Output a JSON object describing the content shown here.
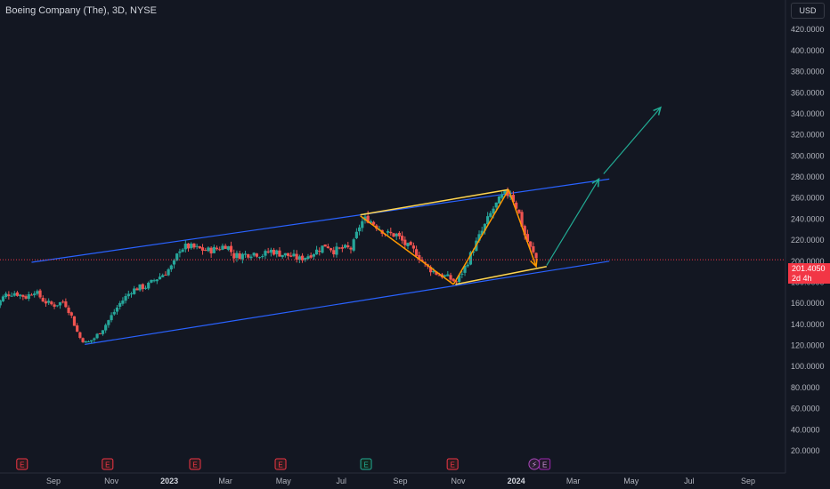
{
  "header": {
    "title": "Boeing Company (The), 3D, NYSE",
    "currency": "USD"
  },
  "price_label": {
    "price": "201.4050",
    "countdown": "2d 4h"
  },
  "colors": {
    "up": "#26a69a",
    "down": "#ef5350",
    "channel": "#2962ff",
    "pattern": "#ff9800",
    "pattern_line": "#ffd54f",
    "projection": "#22ab94",
    "price_line": "#f23645",
    "background": "#131722"
  },
  "chart_data": {
    "type": "candlestick",
    "ylim": [
      20,
      440
    ],
    "yticks": [
      20,
      40,
      60,
      80,
      100,
      120,
      140,
      160,
      180,
      200,
      220,
      240,
      260,
      280,
      300,
      320,
      340,
      360,
      380,
      400,
      420
    ],
    "ytick_labels": [
      "20.0000",
      "40.0000",
      "60.0000",
      "80.0000",
      "100.0000",
      "120.0000",
      "140.0000",
      "160.0000",
      "180.0000",
      "200.0000",
      "220.0000",
      "240.0000",
      "260.0000",
      "280.0000",
      "300.0000",
      "320.0000",
      "340.0000",
      "360.0000",
      "380.0000",
      "400.0000",
      "420.0000"
    ],
    "xticks": [
      {
        "label": "Sep",
        "date": "2022-09-01",
        "year": false
      },
      {
        "label": "Nov",
        "date": "2022-11-01",
        "year": false
      },
      {
        "label": "2023",
        "date": "2023-01-01",
        "year": true
      },
      {
        "label": "Mar",
        "date": "2023-03-01",
        "year": false
      },
      {
        "label": "May",
        "date": "2023-05-01",
        "year": false
      },
      {
        "label": "Jul",
        "date": "2023-07-01",
        "year": false
      },
      {
        "label": "Sep",
        "date": "2023-09-01",
        "year": false
      },
      {
        "label": "Nov",
        "date": "2023-11-01",
        "year": false
      },
      {
        "label": "2024",
        "date": "2024-01-01",
        "year": true
      },
      {
        "label": "Mar",
        "date": "2024-03-01",
        "year": false
      },
      {
        "label": "May",
        "date": "2024-05-01",
        "year": false
      },
      {
        "label": "Jul",
        "date": "2024-07-01",
        "year": false
      },
      {
        "label": "Sep",
        "date": "2024-09-01",
        "year": false
      }
    ],
    "price_close": 201.405,
    "path": [
      [
        "2022-07-01",
        155
      ],
      [
        "2022-07-12",
        168
      ],
      [
        "2022-07-22",
        170
      ],
      [
        "2022-08-03",
        166
      ],
      [
        "2022-08-12",
        172
      ],
      [
        "2022-08-22",
        162
      ],
      [
        "2022-09-01",
        158
      ],
      [
        "2022-09-12",
        162
      ],
      [
        "2022-09-19",
        150
      ],
      [
        "2022-09-28",
        128
      ],
      [
        "2022-10-06",
        122
      ],
      [
        "2022-10-14",
        127
      ],
      [
        "2022-10-24",
        137
      ],
      [
        "2022-11-01",
        148
      ],
      [
        "2022-11-10",
        160
      ],
      [
        "2022-11-22",
        172
      ],
      [
        "2022-11-30",
        175
      ],
      [
        "2022-12-08",
        176
      ],
      [
        "2022-12-16",
        182
      ],
      [
        "2022-12-26",
        188
      ],
      [
        "2023-01-05",
        196
      ],
      [
        "2023-01-12",
        212
      ],
      [
        "2023-01-20",
        214
      ],
      [
        "2023-01-30",
        212
      ],
      [
        "2023-02-10",
        210
      ],
      [
        "2023-02-22",
        212
      ],
      [
        "2023-03-02",
        216
      ],
      [
        "2023-03-10",
        205
      ],
      [
        "2023-03-20",
        206
      ],
      [
        "2023-03-30",
        208
      ],
      [
        "2023-04-10",
        206
      ],
      [
        "2023-04-18",
        210
      ],
      [
        "2023-04-28",
        207
      ],
      [
        "2023-05-08",
        205
      ],
      [
        "2023-05-18",
        202
      ],
      [
        "2023-05-26",
        205
      ],
      [
        "2023-06-05",
        210
      ],
      [
        "2023-06-15",
        216
      ],
      [
        "2023-06-23",
        210
      ],
      [
        "2023-07-03",
        212
      ],
      [
        "2023-07-12",
        212
      ],
      [
        "2023-07-21",
        236
      ],
      [
        "2023-07-28",
        241
      ],
      [
        "2023-08-08",
        233
      ],
      [
        "2023-08-18",
        226
      ],
      [
        "2023-08-28",
        225
      ],
      [
        "2023-09-07",
        215
      ],
      [
        "2023-09-18",
        208
      ],
      [
        "2023-09-28",
        195
      ],
      [
        "2023-10-10",
        188
      ],
      [
        "2023-10-20",
        185
      ],
      [
        "2023-10-30",
        180
      ],
      [
        "2023-11-09",
        196
      ],
      [
        "2023-11-17",
        212
      ],
      [
        "2023-11-28",
        232
      ],
      [
        "2023-12-08",
        250
      ],
      [
        "2023-12-18",
        262
      ],
      [
        "2023-12-26",
        265
      ],
      [
        "2024-01-03",
        248
      ],
      [
        "2024-01-10",
        225
      ],
      [
        "2024-01-17",
        210
      ],
      [
        "2024-01-23",
        201.4
      ]
    ],
    "channel": {
      "upper": [
        [
          "2022-08-09",
          199
        ],
        [
          "2024-04-08",
          278
        ]
      ],
      "lower": [
        [
          "2022-10-04",
          121
        ],
        [
          "2024-04-08",
          200
        ]
      ]
    },
    "pattern_lines": {
      "top": [
        [
          "2023-07-21",
          244
        ],
        [
          "2023-12-24",
          268
        ]
      ],
      "bottom": [
        [
          "2023-10-29",
          178
        ],
        [
          "2024-02-02",
          195
        ]
      ]
    },
    "pattern_path": [
      [
        "2023-07-21",
        243
      ],
      [
        "2023-10-27",
        178
      ],
      [
        "2023-12-24",
        268
      ],
      [
        "2024-01-22",
        195
      ]
    ],
    "projection": [
      [
        "2024-02-02",
        196
      ],
      [
        "2024-03-28",
        278
      ]
    ],
    "projection2": [
      [
        "2024-04-02",
        283
      ],
      [
        "2024-06-01",
        346
      ]
    ],
    "event_markers": [
      {
        "date": "2022-07-30",
        "kind": "earnings",
        "symbol": "E"
      },
      {
        "date": "2022-10-28",
        "kind": "earnings",
        "symbol": "E"
      },
      {
        "date": "2023-01-28",
        "kind": "earnings",
        "symbol": "E"
      },
      {
        "date": "2023-04-28",
        "kind": "earnings",
        "symbol": "E"
      },
      {
        "date": "2023-07-27",
        "kind": "earnings-positive",
        "symbol": "E"
      },
      {
        "date": "2023-10-26",
        "kind": "earnings",
        "symbol": "E"
      },
      {
        "date": "2024-01-20",
        "kind": "split",
        "symbol": "⚡"
      },
      {
        "date": "2024-01-31",
        "kind": "earnings-upcoming",
        "symbol": "E"
      }
    ]
  }
}
